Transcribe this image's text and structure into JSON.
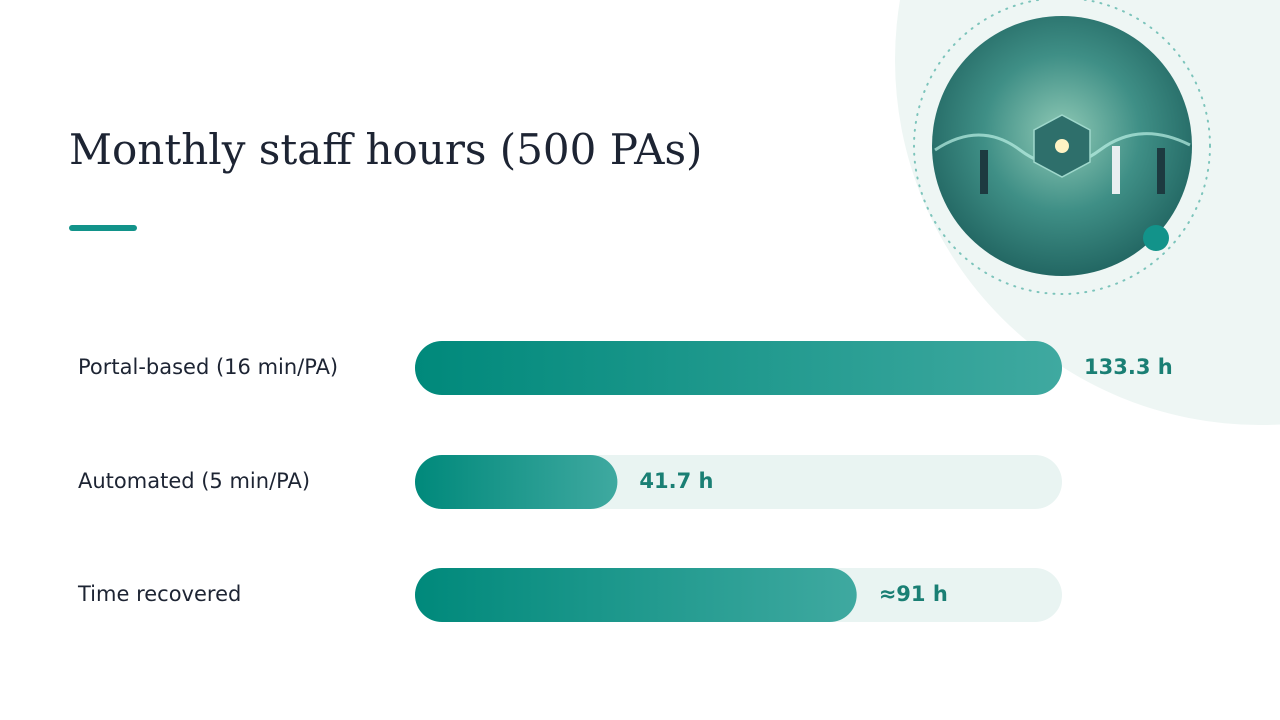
{
  "chart_data": {
    "type": "bar",
    "orientation": "horizontal",
    "title": "Monthly staff hours (500 PAs)",
    "categories": [
      "Portal-based (16 min/PA)",
      "Automated (5 min/PA)",
      "Time recovered"
    ],
    "values": [
      133.3,
      41.7,
      91
    ],
    "value_labels": [
      "133.3 h",
      "41.7 h",
      "≈91 h"
    ],
    "color": "#1a9a8c",
    "xlim": [
      0,
      133.3
    ]
  }
}
